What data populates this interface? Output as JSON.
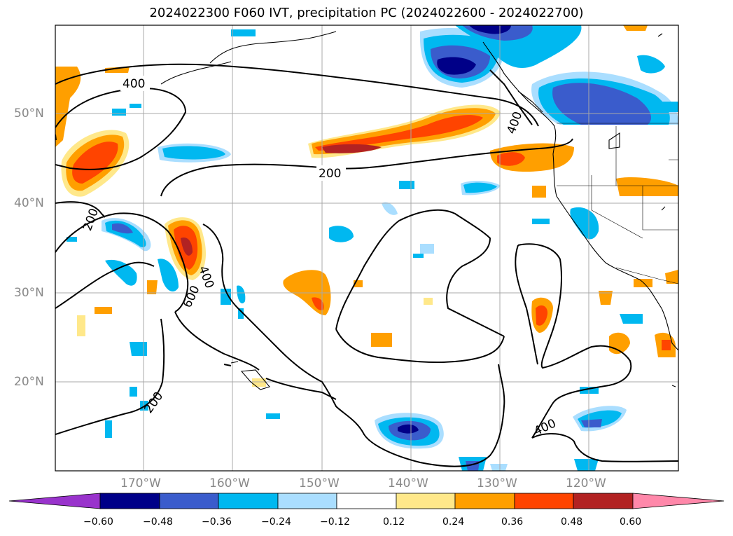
{
  "title": "2024022300 F060 IVT, precipitation PC (2024022600 - 2024022700)",
  "map": {
    "lat_labels": [
      "50°N",
      "40°N",
      "30°N",
      "20°N"
    ],
    "lon_labels": [
      "170°W",
      "160°W",
      "150°W",
      "140°W",
      "130°W",
      "120°W"
    ],
    "contour_labels": [
      "400",
      "200",
      "200",
      "400",
      "600",
      "400",
      "400",
      "200"
    ],
    "land_color": "#ffffff",
    "grid_color": "#a8a8a8"
  },
  "colorbar": {
    "ticks": [
      "−0.60",
      "−0.48",
      "−0.36",
      "−0.24",
      "−0.12",
      "0.12",
      "0.24",
      "0.36",
      "0.48",
      "0.60"
    ],
    "colors": [
      "#9933cc",
      "#000088",
      "#3a5ccc",
      "#00b8f0",
      "#aadeff",
      "#ffffff",
      "#ffe88a",
      "#ff9f00",
      "#ff4400",
      "#b22222",
      "#ff88aa"
    ]
  }
}
